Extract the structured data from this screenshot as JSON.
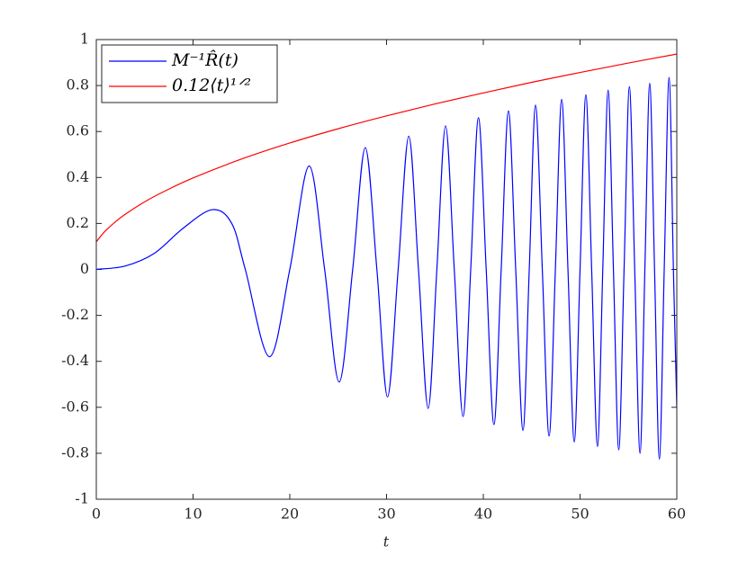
{
  "chart_data": {
    "type": "line",
    "x_label": "t",
    "xlim": [
      0,
      60
    ],
    "xticks": [
      0,
      10,
      20,
      30,
      40,
      50,
      60
    ],
    "ylim": [
      -1,
      1
    ],
    "yticks": [
      -1,
      -0.8,
      -0.6,
      -0.4,
      -0.2,
      0,
      0.2,
      0.4,
      0.6,
      0.8,
      1
    ],
    "grid": false,
    "legend": "top-left",
    "series": [
      {
        "name": "M⁻¹R̂(t)",
        "color": "#0000ff",
        "x": [
          0,
          3,
          6,
          9,
          12,
          14,
          15.4,
          17.9,
          20,
          22,
          23.6,
          25.1,
          26.5,
          27.8,
          29,
          30.1,
          31.2,
          32.3,
          33.3,
          34.3,
          35.2,
          36.1,
          37,
          37.9,
          38.7,
          39.5,
          40.3,
          41.1,
          41.85,
          42.6,
          43.35,
          44.1,
          44.75,
          45.4,
          46.1,
          46.8,
          47.45,
          48.1,
          48.75,
          49.4,
          50,
          50.6,
          51.2,
          51.8,
          52.35,
          52.9,
          53.45,
          54,
          54.55,
          55.1,
          55.65,
          56.2,
          56.7,
          57.2,
          57.7,
          58.2,
          58.7,
          59.2,
          59.65,
          60
        ],
        "values": [
          0,
          0.015,
          0.07,
          0.18,
          0.26,
          0.2,
          0,
          -0.38,
          0,
          0.45,
          0,
          -0.49,
          0,
          0.53,
          0,
          -0.555,
          0,
          0.58,
          0,
          -0.605,
          0,
          0.625,
          0,
          -0.64,
          0,
          0.66,
          0,
          -0.675,
          0,
          0.69,
          0,
          -0.7,
          0,
          0.715,
          0,
          -0.725,
          0,
          0.74,
          0,
          -0.75,
          0,
          0.76,
          0,
          -0.77,
          0,
          0.78,
          0,
          -0.785,
          0,
          0.795,
          0,
          -0.8,
          0,
          0.81,
          0,
          -0.825,
          0,
          0.835,
          0,
          -0.6
        ]
      },
      {
        "name": "0.12⟨t⟩¹ᐟ²",
        "color": "#ff0000",
        "x": [
          0,
          0.5,
          1,
          2,
          3,
          5,
          7,
          10,
          15,
          20,
          25,
          30,
          35,
          40,
          45,
          50,
          55,
          60
        ],
        "values": [
          0.12,
          0.147,
          0.17,
          0.208,
          0.24,
          0.294,
          0.339,
          0.398,
          0.48,
          0.55,
          0.612,
          0.668,
          0.72,
          0.768,
          0.814,
          0.857,
          0.898,
          0.937
        ]
      }
    ]
  }
}
